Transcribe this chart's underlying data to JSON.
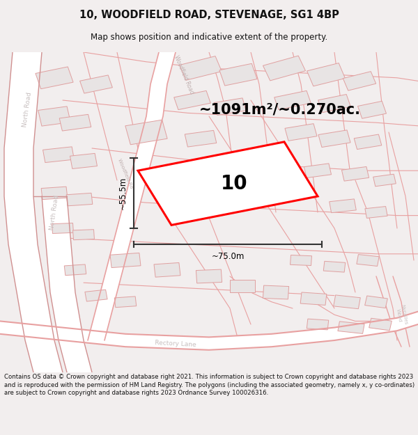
{
  "title_line1": "10, WOODFIELD ROAD, STEVENAGE, SG1 4BP",
  "title_line2": "Map shows position and indicative extent of the property.",
  "area_text": "~1091m²/~0.270ac.",
  "plot_number": "10",
  "dim_width": "~75.0m",
  "dim_height": "~55.5m",
  "footer_text": "Contains OS data © Crown copyright and database right 2021. This information is subject to Crown copyright and database rights 2023 and is reproduced with the permission of HM Land Registry. The polygons (including the associated geometry, namely x, y co-ordinates) are subject to Crown copyright and database rights 2023 Ordnance Survey 100026316.",
  "bg_color": "#f2eeee",
  "map_bg": "#ffffff",
  "road_color": "#e8a0a0",
  "road_outline_color": "#d88888",
  "building_fill": "#e8e4e4",
  "building_edge": "#e0a0a0",
  "plot_color": "#ff0000",
  "dim_color": "#333333",
  "title_color": "#111111",
  "footer_color": "#111111",
  "road_label_color": "#c0b0b0",
  "north_road_color": "#c8c0c0",
  "woodfield_road_label": "#c0b0b0"
}
